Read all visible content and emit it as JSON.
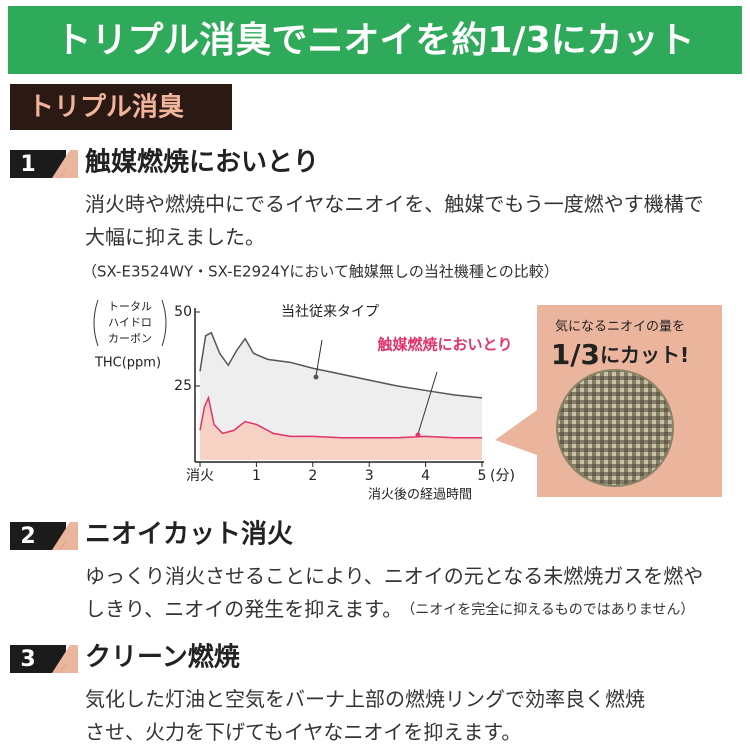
{
  "banner": "トリプル消臭でニオイを約1/3にカット",
  "section_title": "トリプル消臭",
  "items": [
    {
      "number": "1",
      "heading": "触媒燃焼においとり",
      "body": [
        "消火時や燃焼中にでるイヤなニオイを、触媒でもう一度燃やす機構で",
        "大幅に抑えました。"
      ],
      "note": "（SX-E3524WY・SX-E2924Yにおいて触媒無しの当社機種との比較）"
    },
    {
      "number": "2",
      "heading": "ニオイカット消火",
      "body": [
        "ゆっくり消火させることにより、ニオイの元となる未燃焼ガスを燃や",
        "しきり、ニオイの発生を抑えます。"
      ],
      "note": "（ニオイを完全に抑えるものではありません）"
    },
    {
      "number": "3",
      "heading": "クリーン燃焼",
      "body": [
        "気化した灯油と空気をバーナ上部の燃焼リングで効率良く燃焼",
        "させ、火力を下げてもイヤなニオイを抑えます。"
      ]
    }
  ],
  "chart_data": {
    "type": "line",
    "y_label": [
      "トータル",
      "ハイドロ",
      "カーボン",
      "THC(ppm)"
    ],
    "x_label": "消火後の経過時間",
    "x_unit": "(分)",
    "xlim": [
      0,
      5
    ],
    "ylim": [
      0,
      50
    ],
    "xticks": [
      {
        "value": 0,
        "label": "消火"
      },
      1,
      2,
      3,
      4,
      5
    ],
    "yticks": [
      25,
      50
    ],
    "series": [
      {
        "name": "当社従来タイプ",
        "color": "#555555",
        "x": [
          0,
          0.1,
          0.2,
          0.35,
          0.5,
          0.65,
          0.8,
          0.95,
          1.2,
          1.6,
          2,
          2.5,
          3,
          3.5,
          4,
          4.5,
          5
        ],
        "values": [
          30,
          42,
          43,
          36,
          32,
          37,
          41,
          36,
          34,
          33,
          31,
          29,
          27,
          25,
          23.5,
          22,
          21
        ]
      },
      {
        "name": "触媒燃焼においとり",
        "color": "#e0336b",
        "x": [
          0,
          0.08,
          0.15,
          0.25,
          0.4,
          0.6,
          0.8,
          1,
          1.3,
          1.6,
          2,
          2.5,
          3,
          3.5,
          4,
          4.5,
          5
        ],
        "values": [
          10,
          18,
          21,
          12,
          9,
          10,
          13,
          12,
          9,
          8,
          8,
          7.5,
          7.5,
          7.5,
          8,
          7.5,
          7.5
        ]
      }
    ]
  },
  "callout": {
    "text": "気になるニオイの量を",
    "amount": "1/3",
    "rest": "にカット!"
  }
}
